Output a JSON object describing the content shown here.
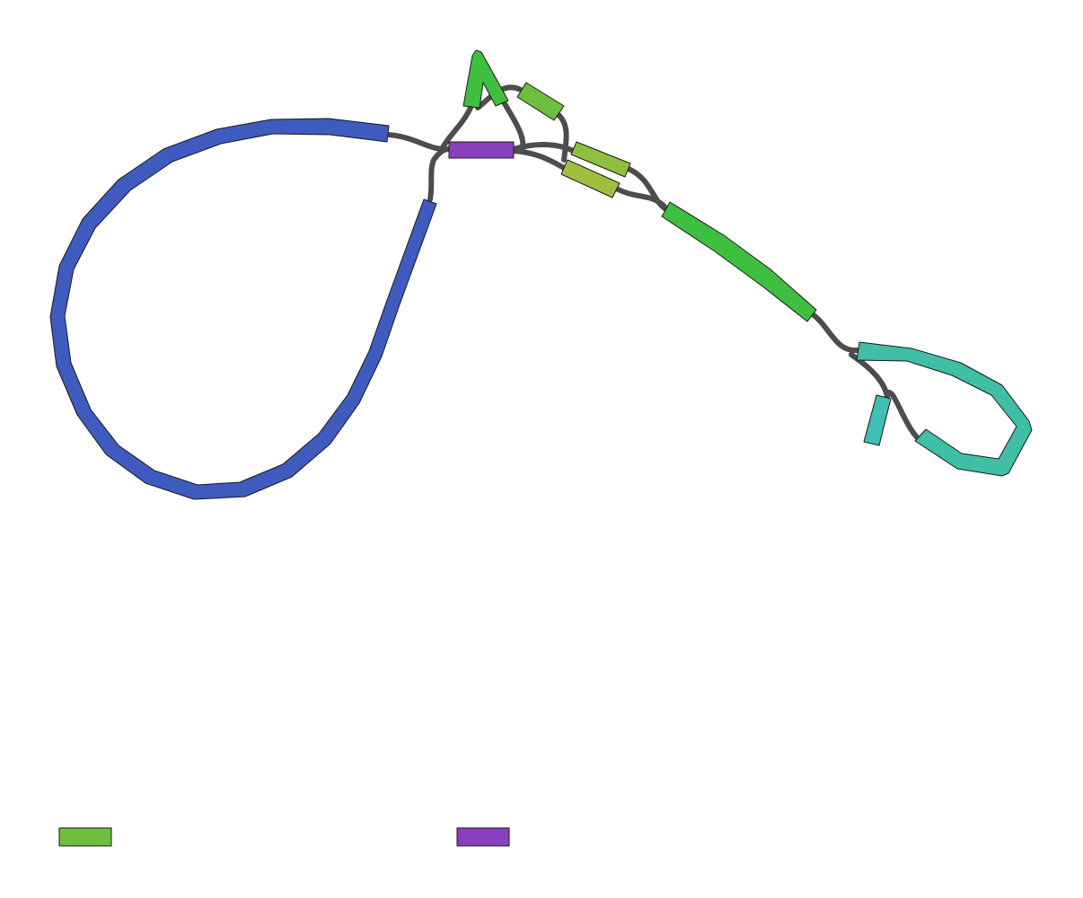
{
  "colors": {
    "blue": "#3f5bbf",
    "purple": "#8a3fbf",
    "green": "#3fbf3f",
    "lime": "#6fbf3f",
    "olive": "#8fbf3f",
    "yellowgreen": "#9fbf3f",
    "teal": "#3fbfa5",
    "cyan": "#3fbfb5",
    "link": "#4d4d4d",
    "outline": "#1a1a1a"
  },
  "legend": {
    "items": [
      {
        "color": "lime",
        "label": ""
      },
      {
        "color": "purple",
        "label": ""
      }
    ]
  }
}
